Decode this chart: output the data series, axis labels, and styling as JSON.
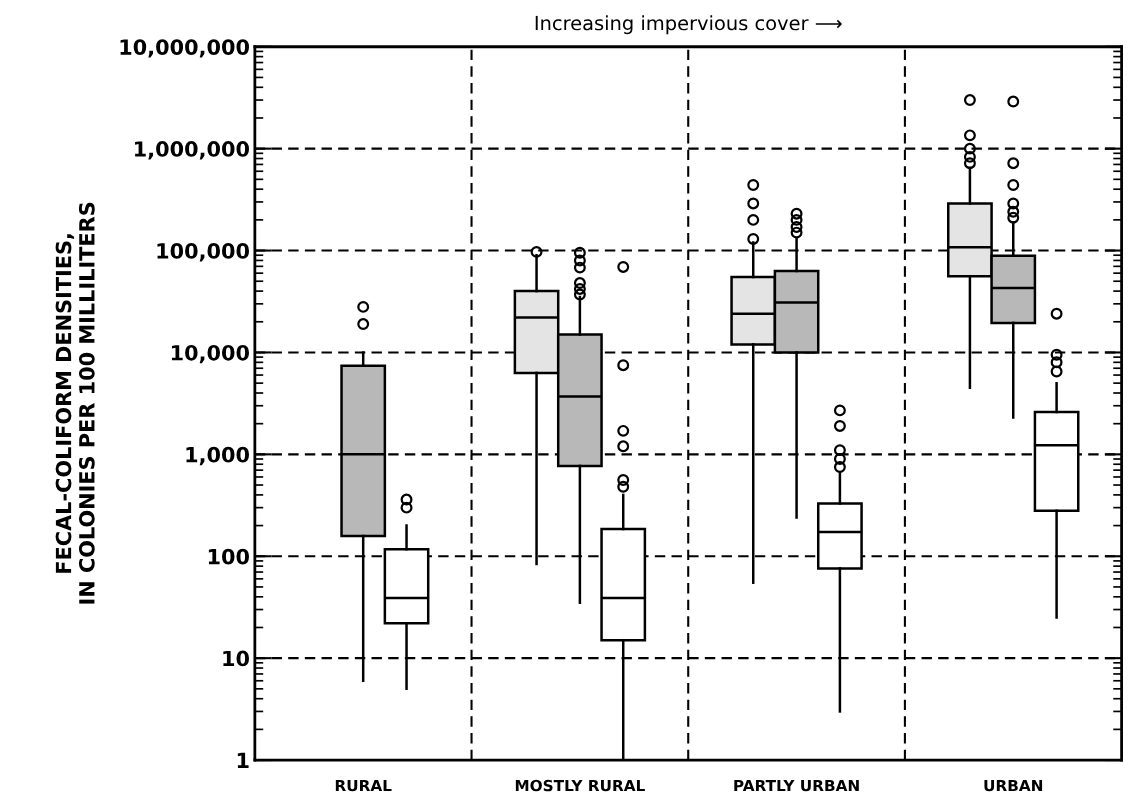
{
  "chart_data": {
    "type": "box",
    "title": "Increasing impervious cover ⟶",
    "ylabel": "FECAL-COLIFORM DENSITIES,\nIN COLONIES PER 100 MILLILITERS",
    "categories": [
      "RURAL",
      "MOSTLY RURAL",
      "PARTLY URBAN",
      "URBAN"
    ],
    "log": true,
    "grid": true,
    "ylim": [
      1,
      10000000
    ],
    "yticks": [
      1,
      10,
      100,
      {
        "value": 1000,
        "label": "1,000"
      },
      {
        "value": 10000,
        "label": "10,000"
      },
      {
        "value": 100000,
        "label": "100,000"
      },
      {
        "value": 1000000,
        "label": "1,000,000"
      },
      {
        "value": 10000000,
        "label": "10,000,000"
      }
    ],
    "series": [
      {
        "color": "#e4e4e4",
        "boxes": [
          null,
          {
            "low": 84,
            "q1": 6300,
            "median": 22000,
            "q3": 40000,
            "high": 90000,
            "outliers": [
              97000
            ]
          },
          {
            "low": 55,
            "q1": 12000,
            "median": 24000,
            "q3": 55000,
            "high": 120000,
            "outliers": [
              440000,
              290000,
              200000,
              130000
            ]
          },
          {
            "low": 4500,
            "q1": 56000,
            "median": 108000,
            "q3": 290000,
            "high": 650000,
            "outliers": [
              3000000,
              1350000,
              1000000,
              830000,
              720000
            ]
          }
        ]
      },
      {
        "color": "#b8b8b8",
        "boxes": [
          {
            "low": 6,
            "q1": 158,
            "median": 1000,
            "q3": 7400,
            "high": 10000,
            "outliers": [
              28000,
              19000
            ]
          },
          {
            "low": 35,
            "q1": 770,
            "median": 3700,
            "q3": 15000,
            "high": 35000,
            "outliers": [
              95000,
              80000,
              68000,
              48000,
              42000,
              37000
            ]
          },
          {
            "low": 240,
            "q1": 10000,
            "median": 31000,
            "q3": 63000,
            "high": 130000,
            "outliers": [
              230000,
              200000,
              170000,
              150000
            ]
          },
          {
            "low": 2300,
            "q1": 19500,
            "median": 43000,
            "q3": 89000,
            "high": 190000,
            "outliers": [
              2900000,
              720000,
              440000,
              290000,
              240000,
              210000
            ]
          }
        ]
      },
      {
        "color": "#ffffff",
        "boxes": [
          {
            "low": 5,
            "q1": 22,
            "median": 39,
            "q3": 117,
            "high": 200,
            "outliers": [
              360,
              300
            ]
          },
          {
            "low": 1,
            "q1": 15,
            "median": 39,
            "q3": 185,
            "high": 400,
            "outliers": [
              69000,
              7500,
              1700,
              1200,
              560,
              480
            ]
          },
          {
            "low": 3,
            "q1": 76,
            "median": 173,
            "q3": 330,
            "high": 650,
            "outliers": [
              2700,
              1900,
              1100,
              900,
              750
            ]
          },
          {
            "low": 25,
            "q1": 280,
            "median": 1230,
            "q3": 2600,
            "high": 5000,
            "outliers": [
              24000,
              9500,
              8000,
              6500
            ]
          }
        ]
      }
    ]
  }
}
